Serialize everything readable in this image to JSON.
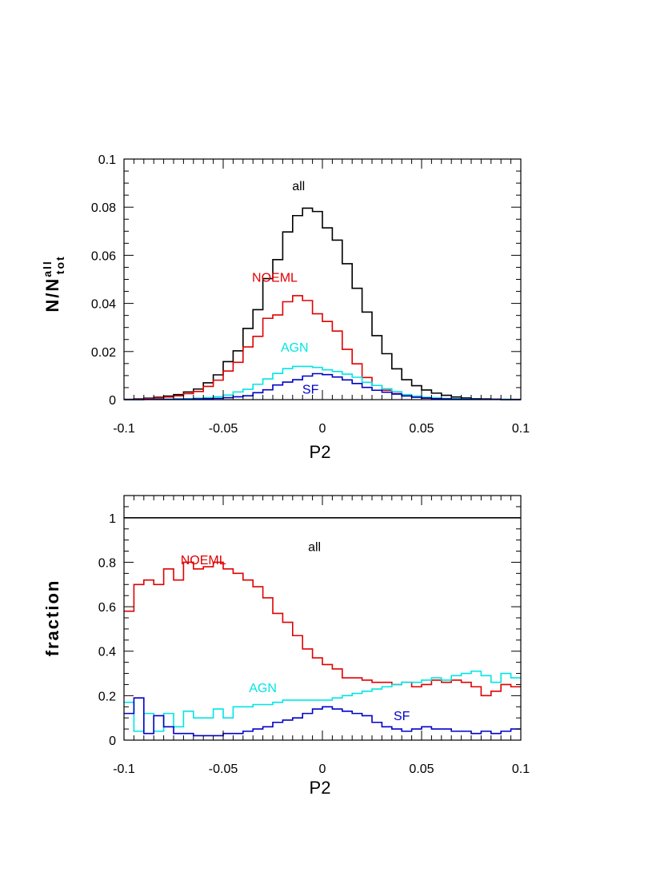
{
  "chart_data": [
    {
      "type": "histogram",
      "id": "top",
      "xlabel": "P2",
      "ylabel": {
        "base": "N/N",
        "sup": "all",
        "sub": "tot"
      },
      "xlim": [
        -0.1,
        0.1
      ],
      "ylim": [
        0,
        0.1
      ],
      "xticks": [
        -0.1,
        -0.05,
        0,
        0.05,
        0.1
      ],
      "xtick_labels": [
        "-0.1",
        "-0.05",
        "0",
        "0.05",
        "0.1"
      ],
      "yticks": [
        0,
        0.02,
        0.04,
        0.06,
        0.08,
        0.1
      ],
      "ytick_labels": [
        "0",
        "0.02",
        "0.04",
        "0.06",
        "0.08",
        "0.1"
      ],
      "bin_width": 0.005,
      "x_start": -0.1,
      "series": [
        {
          "name": "all",
          "color": "#000000",
          "label_pos": {
            "x": -0.012,
            "y": 0.087
          },
          "values": [
            0.0001,
            0.0003,
            0.0006,
            0.001,
            0.0015,
            0.0021,
            0.0032,
            0.0044,
            0.007,
            0.0103,
            0.0158,
            0.0203,
            0.0296,
            0.0374,
            0.0503,
            0.0582,
            0.0697,
            0.0765,
            0.0796,
            0.0782,
            0.0714,
            0.0663,
            0.0565,
            0.0463,
            0.0364,
            0.0266,
            0.0191,
            0.0128,
            0.0083,
            0.0058,
            0.004,
            0.0027,
            0.0018,
            0.0011,
            0.0007,
            0.0004,
            0.0003,
            0.0002,
            0.0001,
            0.0001
          ]
        },
        {
          "name": "NOEML",
          "color": "#e00000",
          "label_pos": {
            "x": -0.024,
            "y": 0.049
          },
          "values": [
            0.0001,
            0.0002,
            0.0004,
            0.0007,
            0.0011,
            0.0016,
            0.0025,
            0.0034,
            0.0055,
            0.0081,
            0.0119,
            0.0155,
            0.0219,
            0.0263,
            0.0338,
            0.0352,
            0.0407,
            0.0432,
            0.0412,
            0.0357,
            0.0325,
            0.0285,
            0.0209,
            0.0149,
            0.0092,
            0.0059,
            0.0039,
            0.0025,
            0.0016,
            0.001,
            0.0006,
            0.0004,
            0.0003,
            0.0002,
            0.0001,
            0.0001,
            0.0001,
            0.0001,
            0.0,
            0.0
          ]
        },
        {
          "name": "AGN",
          "color": "#00e5e5",
          "label_pos": {
            "x": -0.014,
            "y": 0.02
          },
          "values": [
            0.0,
            0.0,
            0.0001,
            0.0002,
            0.0002,
            0.0003,
            0.0004,
            0.0006,
            0.0008,
            0.0012,
            0.0019,
            0.0032,
            0.0043,
            0.0064,
            0.0086,
            0.0109,
            0.0129,
            0.0138,
            0.0138,
            0.0134,
            0.0124,
            0.0117,
            0.0106,
            0.0093,
            0.0072,
            0.0059,
            0.0045,
            0.0033,
            0.0021,
            0.0015,
            0.001,
            0.0007,
            0.0005,
            0.0004,
            0.0003,
            0.0002,
            0.0001,
            0.0001,
            0.0001,
            0.0
          ]
        },
        {
          "name": "SF",
          "color": "#0000c8",
          "label_pos": {
            "x": -0.006,
            "y": 0.0025
          },
          "values": [
            0.0,
            0.0,
            0.0001,
            0.0001,
            0.0001,
            0.0002,
            0.0002,
            0.0003,
            0.0004,
            0.0005,
            0.0008,
            0.0012,
            0.0016,
            0.0029,
            0.0041,
            0.0061,
            0.0073,
            0.0083,
            0.0098,
            0.0108,
            0.0104,
            0.0094,
            0.0082,
            0.0067,
            0.0051,
            0.0039,
            0.0031,
            0.0023,
            0.0015,
            0.001,
            0.0007,
            0.0004,
            0.0003,
            0.0002,
            0.0002,
            0.0001,
            0.0001,
            0.0001,
            0.0,
            0.0
          ]
        }
      ]
    },
    {
      "type": "histogram",
      "id": "bottom",
      "xlabel": "P2",
      "ylabel": {
        "base": "fraction"
      },
      "xlim": [
        -0.1,
        0.1
      ],
      "ylim": [
        0,
        1.1
      ],
      "xticks": [
        -0.1,
        -0.05,
        0,
        0.05,
        0.1
      ],
      "xtick_labels": [
        "-0.1",
        "-0.05",
        "0",
        "0.05",
        "0.1"
      ],
      "yticks": [
        0,
        0.2,
        0.4,
        0.6,
        0.8,
        1
      ],
      "ytick_labels": [
        "0",
        "0.2",
        "0.4",
        "0.6",
        "0.8",
        "1"
      ],
      "bin_width": 0.005,
      "x_start": -0.1,
      "series": [
        {
          "name": "all",
          "color": "#000000",
          "label_pos": {
            "x": -0.004,
            "y": 0.85
          },
          "values": [
            1,
            1,
            1,
            1,
            1,
            1,
            1,
            1,
            1,
            1,
            1,
            1,
            1,
            1,
            1,
            1,
            1,
            1,
            1,
            1,
            1,
            1,
            1,
            1,
            1,
            1,
            1,
            1,
            1,
            1,
            1,
            1,
            1,
            1,
            1,
            1,
            1,
            1,
            1,
            1
          ]
        },
        {
          "name": "NOEML",
          "color": "#e00000",
          "label_pos": {
            "x": -0.06,
            "y": 0.79
          },
          "values": [
            0.58,
            0.7,
            0.72,
            0.7,
            0.77,
            0.72,
            0.8,
            0.77,
            0.78,
            0.8,
            0.77,
            0.75,
            0.72,
            0.69,
            0.64,
            0.57,
            0.53,
            0.47,
            0.41,
            0.37,
            0.34,
            0.32,
            0.28,
            0.28,
            0.27,
            0.26,
            0.26,
            0.25,
            0.26,
            0.24,
            0.25,
            0.27,
            0.26,
            0.27,
            0.26,
            0.24,
            0.2,
            0.22,
            0.25,
            0.24
          ]
        },
        {
          "name": "AGN",
          "color": "#00e5e5",
          "label_pos": {
            "x": -0.03,
            "y": 0.215
          },
          "values": [
            0.17,
            0.04,
            0.12,
            0.04,
            0.12,
            0.06,
            0.13,
            0.1,
            0.1,
            0.14,
            0.1,
            0.15,
            0.15,
            0.16,
            0.16,
            0.17,
            0.18,
            0.18,
            0.18,
            0.18,
            0.18,
            0.19,
            0.2,
            0.21,
            0.22,
            0.23,
            0.24,
            0.25,
            0.26,
            0.26,
            0.27,
            0.28,
            0.27,
            0.29,
            0.3,
            0.31,
            0.29,
            0.26,
            0.3,
            0.28
          ]
        },
        {
          "name": "SF",
          "color": "#0000c8",
          "label_pos": {
            "x": 0.04,
            "y": 0.09
          },
          "values": [
            0.12,
            0.19,
            0.03,
            0.11,
            0.06,
            0.03,
            0.03,
            0.02,
            0.02,
            0.02,
            0.03,
            0.03,
            0.04,
            0.05,
            0.06,
            0.08,
            0.09,
            0.1,
            0.12,
            0.14,
            0.15,
            0.14,
            0.13,
            0.12,
            0.11,
            0.08,
            0.06,
            0.05,
            0.04,
            0.05,
            0.06,
            0.05,
            0.05,
            0.04,
            0.04,
            0.03,
            0.04,
            0.03,
            0.04,
            0.05
          ]
        }
      ]
    }
  ]
}
